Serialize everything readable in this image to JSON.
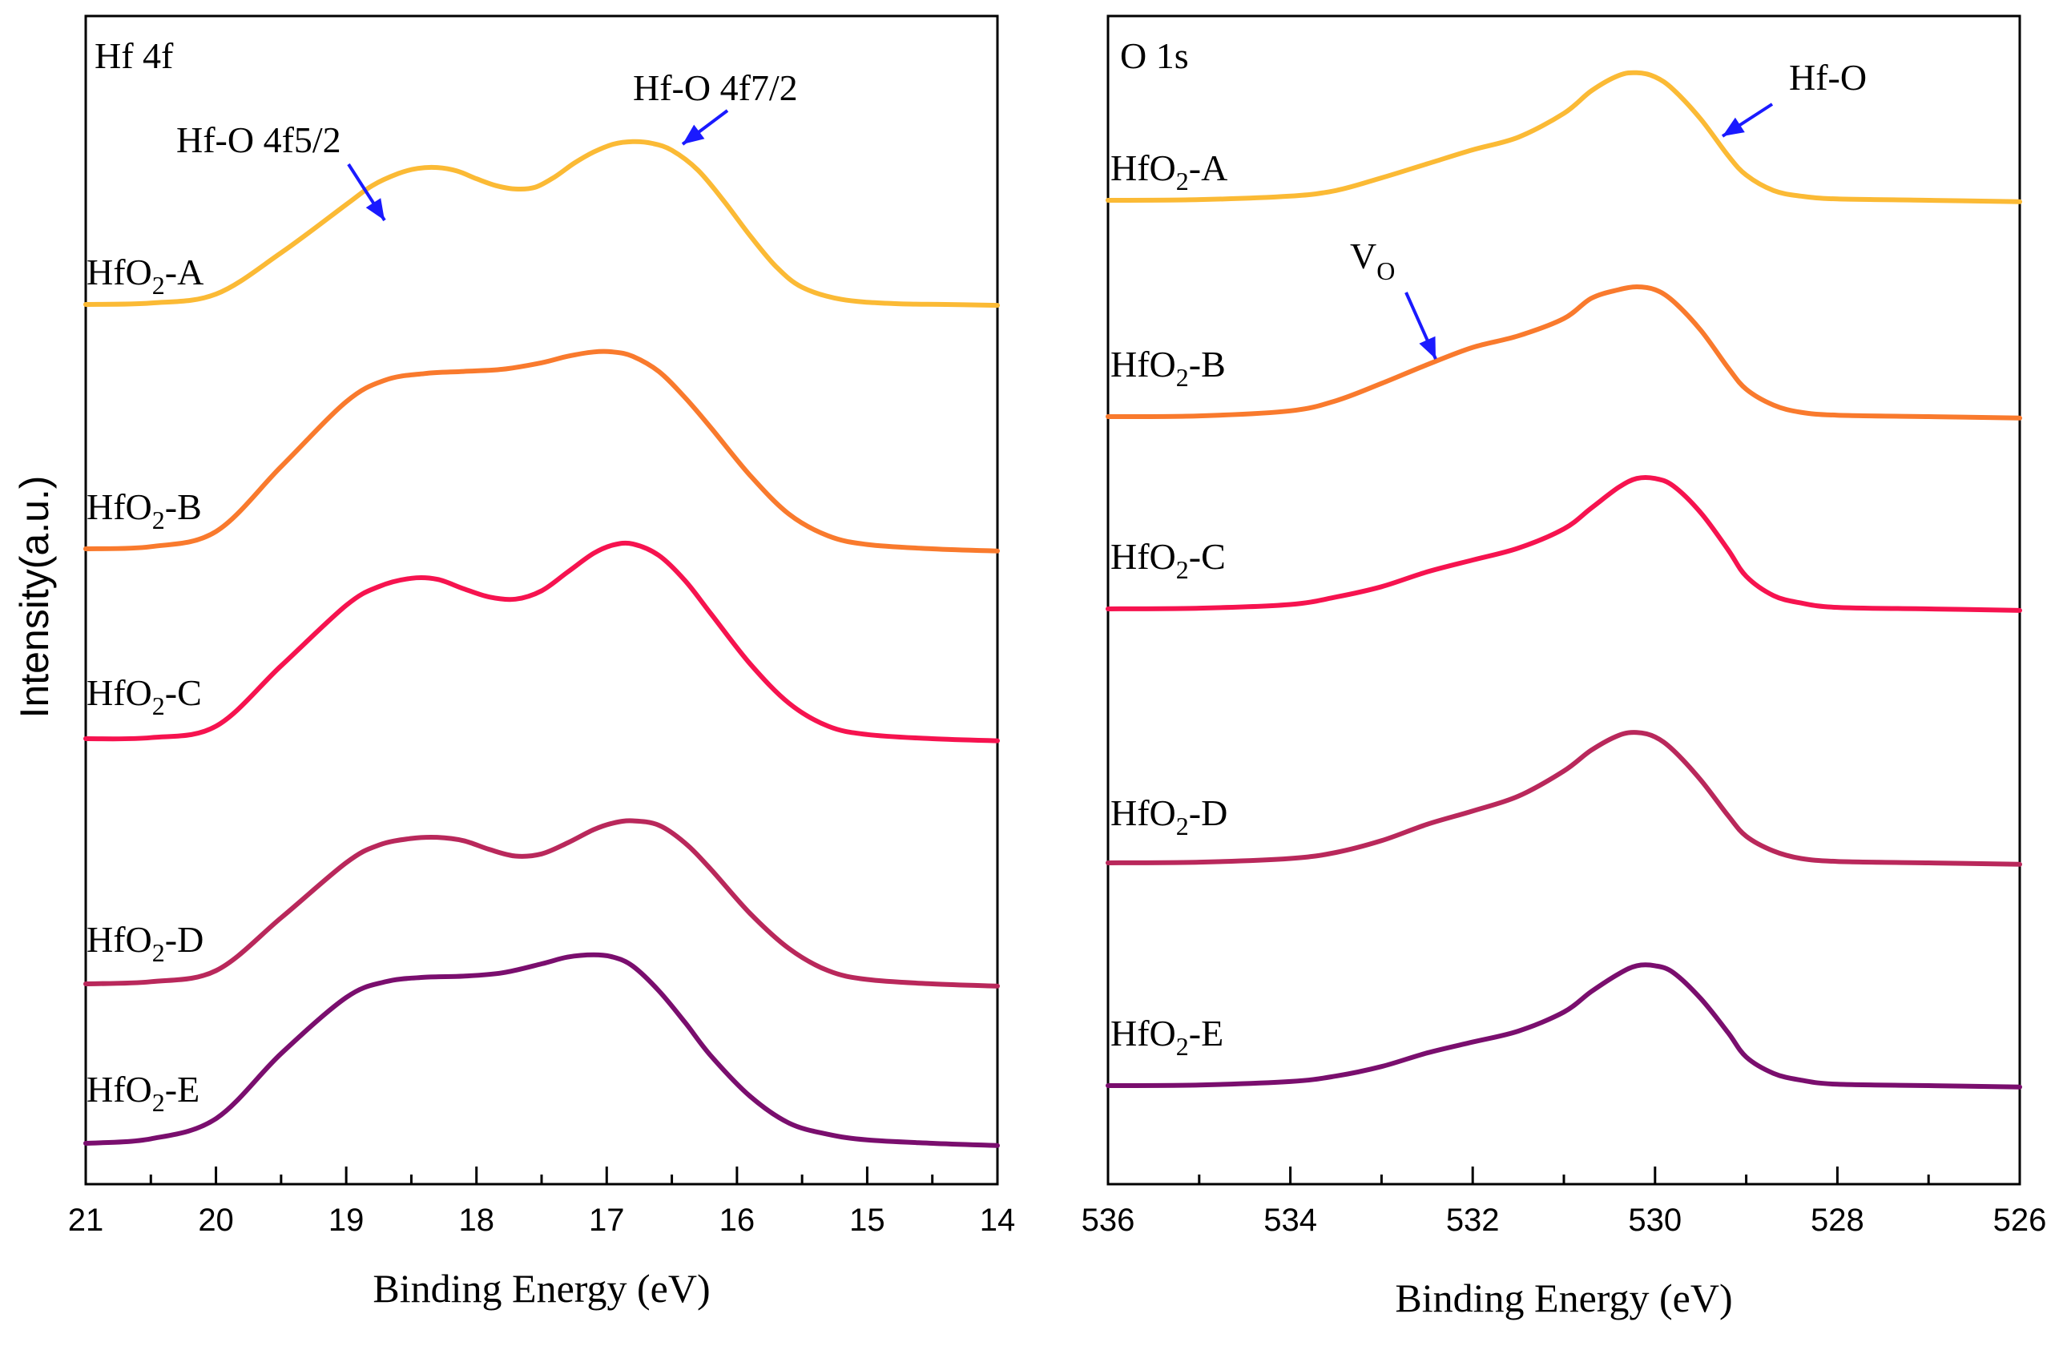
{
  "y_axis_label": "Intensity(a.u.)",
  "chart_data": [
    {
      "type": "line",
      "panel_label": "Hf 4f",
      "xlabel": "Binding Energy (eV)",
      "ylabel": "Intensity(a.u.)",
      "xlim": [
        21,
        14
      ],
      "x_reversed": true,
      "x_ticks": [
        "21",
        "20",
        "19",
        "18",
        "17",
        "16",
        "15",
        "14"
      ],
      "x_tick_values": [
        21,
        20,
        19,
        18,
        17,
        16,
        15,
        14
      ],
      "y_ticks": [],
      "grid": false,
      "series": [
        {
          "name": "HfO2-A",
          "label_main": "HfO",
          "label_sub": "2",
          "label_tail": "-A",
          "color": "#FBBA35",
          "x": [
            21.0,
            20.5,
            20.0,
            19.5,
            19.0,
            18.8,
            18.6,
            18.45,
            18.3,
            18.15,
            18.0,
            17.85,
            17.7,
            17.55,
            17.4,
            17.25,
            17.1,
            16.95,
            16.8,
            16.65,
            16.5,
            16.3,
            16.1,
            15.9,
            15.7,
            15.5,
            15.2,
            14.8,
            14.4,
            14.0
          ],
          "y": [
            0.0,
            0.008,
            0.06,
            0.3,
            0.58,
            0.69,
            0.76,
            0.79,
            0.795,
            0.775,
            0.73,
            0.69,
            0.67,
            0.68,
            0.74,
            0.82,
            0.885,
            0.93,
            0.945,
            0.935,
            0.895,
            0.78,
            0.6,
            0.4,
            0.22,
            0.1,
            0.03,
            0.005,
            0.0,
            -0.005
          ]
        },
        {
          "name": "HfO2-B",
          "label_main": "HfO",
          "label_sub": "2",
          "label_tail": "-B",
          "color": "#F97A2D",
          "x": [
            21.0,
            20.5,
            20.0,
            19.5,
            19.0,
            18.7,
            18.4,
            18.1,
            17.8,
            17.5,
            17.3,
            17.1,
            16.95,
            16.8,
            16.6,
            16.4,
            16.2,
            15.9,
            15.6,
            15.3,
            15.0,
            14.5,
            14.0
          ],
          "y": [
            0.0,
            0.01,
            0.08,
            0.38,
            0.68,
            0.78,
            0.81,
            0.82,
            0.83,
            0.86,
            0.89,
            0.91,
            0.91,
            0.89,
            0.82,
            0.7,
            0.56,
            0.34,
            0.16,
            0.06,
            0.02,
            0.0,
            -0.01
          ]
        },
        {
          "name": "HfO2-C",
          "label_main": "HfO",
          "label_sub": "2",
          "label_tail": "-C",
          "color": "#F6134F",
          "x": [
            21.0,
            20.5,
            20.0,
            19.5,
            19.0,
            18.75,
            18.5,
            18.3,
            18.1,
            17.9,
            17.7,
            17.5,
            17.3,
            17.1,
            16.95,
            16.8,
            16.6,
            16.4,
            16.2,
            15.9,
            15.6,
            15.3,
            15.0,
            14.5,
            14.0
          ],
          "y": [
            0.0,
            0.005,
            0.06,
            0.35,
            0.64,
            0.73,
            0.77,
            0.765,
            0.72,
            0.68,
            0.67,
            0.71,
            0.8,
            0.89,
            0.93,
            0.935,
            0.88,
            0.76,
            0.6,
            0.36,
            0.17,
            0.06,
            0.02,
            0.0,
            -0.01
          ]
        },
        {
          "name": "HfO2-D",
          "label_main": "HfO",
          "label_sub": "2",
          "label_tail": "-D",
          "color": "#B9285B",
          "x": [
            21.0,
            20.5,
            20.0,
            19.5,
            19.0,
            18.75,
            18.5,
            18.3,
            18.1,
            17.9,
            17.7,
            17.5,
            17.3,
            17.1,
            16.95,
            16.8,
            16.6,
            16.4,
            16.2,
            15.9,
            15.6,
            15.3,
            15.0,
            14.5,
            14.0
          ],
          "y": [
            0.0,
            0.01,
            0.06,
            0.3,
            0.55,
            0.63,
            0.66,
            0.665,
            0.65,
            0.61,
            0.58,
            0.59,
            0.64,
            0.7,
            0.73,
            0.74,
            0.72,
            0.64,
            0.52,
            0.32,
            0.16,
            0.06,
            0.02,
            0.0,
            -0.01
          ]
        },
        {
          "name": "HfO2-E",
          "label_main": "HfO",
          "label_sub": "2",
          "label_tail": "-E",
          "color": "#7A0E6E",
          "x": [
            21.0,
            20.5,
            20.0,
            19.5,
            19.0,
            18.7,
            18.4,
            18.1,
            17.8,
            17.5,
            17.3,
            17.1,
            16.95,
            16.8,
            16.6,
            16.4,
            16.2,
            15.9,
            15.6,
            15.3,
            15.0,
            14.5,
            14.0
          ],
          "y": [
            0.0,
            0.02,
            0.11,
            0.4,
            0.65,
            0.72,
            0.74,
            0.745,
            0.76,
            0.8,
            0.83,
            0.84,
            0.83,
            0.79,
            0.68,
            0.54,
            0.39,
            0.21,
            0.09,
            0.04,
            0.015,
            0.0,
            -0.01
          ]
        }
      ],
      "annotations": [
        {
          "text": "Hf-O 4f5/2",
          "x": 19.0,
          "arrow_to": [
            18.7,
            0.63
          ]
        },
        {
          "text": "Hf-O 4f7/2",
          "x": 16.1,
          "arrow_to": [
            16.45,
            0.86
          ]
        }
      ]
    },
    {
      "type": "line",
      "panel_label": "O 1s",
      "xlabel": "Binding Energy (eV)",
      "ylabel": "Intensity(a.u.)",
      "xlim": [
        536,
        526
      ],
      "x_reversed": true,
      "x_ticks": [
        "536",
        "534",
        "532",
        "530",
        "528",
        "526"
      ],
      "x_tick_values": [
        536,
        534,
        532,
        530,
        528,
        526
      ],
      "y_ticks": [],
      "grid": false,
      "series": [
        {
          "name": "HfO2-A",
          "label_main": "HfO",
          "label_sub": "2",
          "label_tail": "-A",
          "color": "#FBBA35",
          "x": [
            536.0,
            535.0,
            534.0,
            533.5,
            533.0,
            532.5,
            532.0,
            531.5,
            531.0,
            530.7,
            530.4,
            530.2,
            530.0,
            529.8,
            529.5,
            529.2,
            529.0,
            528.7,
            528.4,
            528.0,
            527.0,
            526.0
          ],
          "y": [
            0.0,
            0.005,
            0.03,
            0.07,
            0.16,
            0.26,
            0.36,
            0.45,
            0.62,
            0.78,
            0.89,
            0.91,
            0.88,
            0.79,
            0.58,
            0.32,
            0.18,
            0.07,
            0.03,
            0.01,
            0.0,
            -0.01
          ]
        },
        {
          "name": "HfO2-B",
          "label_main": "HfO",
          "label_sub": "2",
          "label_tail": "-B",
          "color": "#F97A2D",
          "x": [
            536.0,
            535.0,
            534.0,
            533.5,
            533.0,
            532.5,
            532.0,
            531.5,
            531.0,
            530.7,
            530.4,
            530.2,
            530.0,
            529.8,
            529.5,
            529.2,
            529.0,
            528.7,
            528.4,
            528.0,
            527.0,
            526.0
          ],
          "y": [
            0.0,
            0.005,
            0.04,
            0.11,
            0.23,
            0.36,
            0.48,
            0.56,
            0.68,
            0.82,
            0.88,
            0.9,
            0.88,
            0.8,
            0.6,
            0.34,
            0.19,
            0.08,
            0.03,
            0.01,
            0.0,
            -0.01
          ]
        },
        {
          "name": "HfO2-C",
          "label_main": "HfO",
          "label_sub": "2",
          "label_tail": "-C",
          "color": "#F6134F",
          "x": [
            536.0,
            535.0,
            534.0,
            533.5,
            533.0,
            532.5,
            532.0,
            531.5,
            531.0,
            530.7,
            530.4,
            530.2,
            530.0,
            529.8,
            529.5,
            529.2,
            529.0,
            528.7,
            528.4,
            528.0,
            527.0,
            526.0
          ],
          "y": [
            0.0,
            0.005,
            0.03,
            0.08,
            0.15,
            0.25,
            0.33,
            0.41,
            0.54,
            0.68,
            0.82,
            0.88,
            0.88,
            0.83,
            0.65,
            0.4,
            0.22,
            0.09,
            0.04,
            0.01,
            0.0,
            -0.01
          ]
        },
        {
          "name": "HfO2-D",
          "label_main": "HfO",
          "label_sub": "2",
          "label_tail": "-D",
          "color": "#B9285B",
          "x": [
            536.0,
            535.0,
            534.0,
            533.5,
            533.0,
            532.5,
            532.0,
            531.5,
            531.0,
            530.7,
            530.4,
            530.2,
            530.0,
            529.8,
            529.5,
            529.2,
            529.0,
            528.7,
            528.4,
            528.0,
            527.0,
            526.0
          ],
          "y": [
            0.0,
            0.005,
            0.03,
            0.07,
            0.15,
            0.26,
            0.35,
            0.45,
            0.62,
            0.76,
            0.86,
            0.88,
            0.85,
            0.76,
            0.56,
            0.32,
            0.18,
            0.08,
            0.03,
            0.01,
            0.0,
            -0.01
          ]
        },
        {
          "name": "HfO2-E",
          "label_main": "HfO",
          "label_sub": "2",
          "label_tail": "-E",
          "color": "#7A0E6E",
          "x": [
            536.0,
            535.0,
            534.0,
            533.5,
            533.0,
            532.5,
            532.0,
            531.5,
            531.0,
            530.7,
            530.4,
            530.2,
            530.0,
            529.8,
            529.5,
            529.2,
            529.0,
            528.7,
            528.4,
            528.0,
            527.0,
            526.0
          ],
          "y": [
            0.0,
            0.005,
            0.03,
            0.07,
            0.14,
            0.24,
            0.32,
            0.4,
            0.54,
            0.69,
            0.82,
            0.88,
            0.88,
            0.83,
            0.64,
            0.39,
            0.21,
            0.09,
            0.04,
            0.01,
            0.0,
            -0.01
          ]
        }
      ],
      "annotations": [
        {
          "text": "Hf-O",
          "x": 529.0,
          "arrow_to": [
            529.35,
            0.62
          ]
        },
        {
          "text": "V",
          "sub": "O",
          "x": 532.5,
          "arrow_to": [
            532.05,
            0.48
          ]
        }
      ]
    }
  ]
}
